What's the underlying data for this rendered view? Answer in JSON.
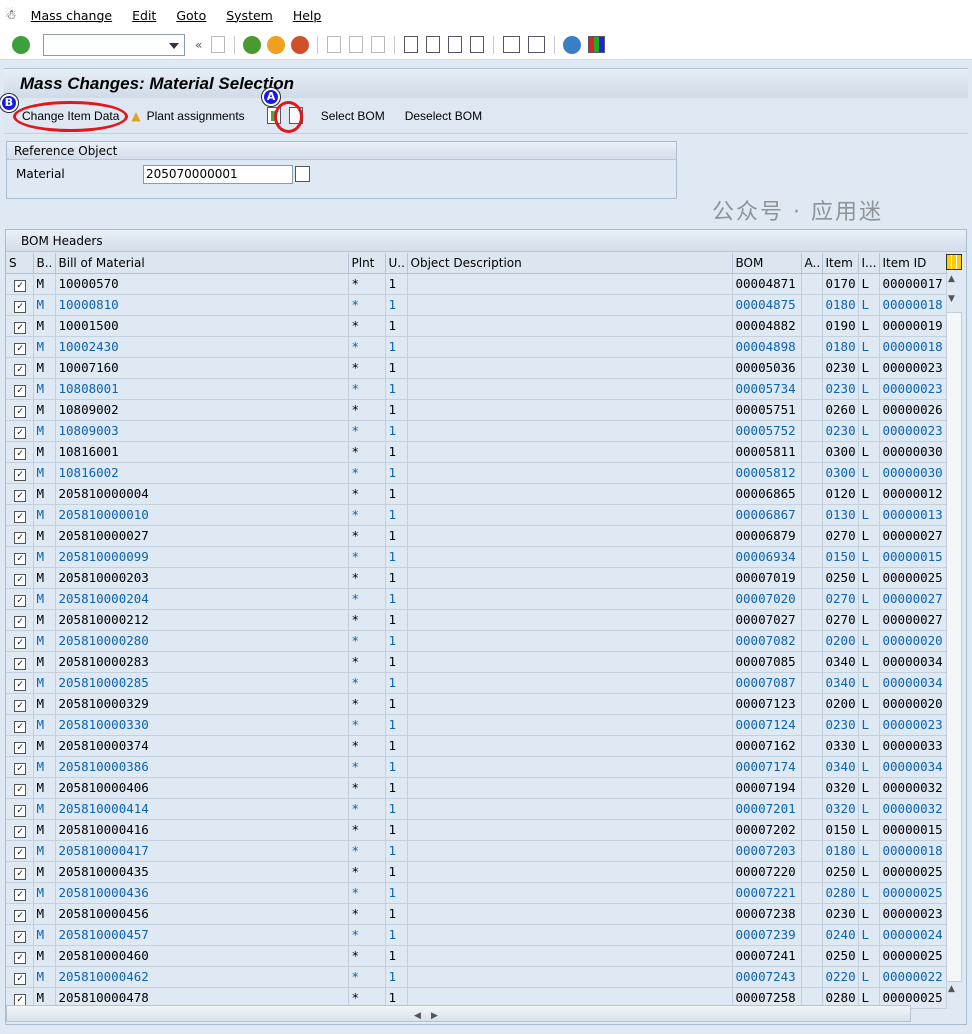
{
  "menu": [
    "Mass change",
    "Edit",
    "Goto",
    "System",
    "Help"
  ],
  "title": "Mass Changes: Material Selection",
  "appbar": {
    "change_item": "Change Item Data",
    "plant": "Plant assignments",
    "select": "Select BOM",
    "deselect": "Deselect BOM",
    "badge_a": "A",
    "badge_b": "B"
  },
  "reference": {
    "title": "Reference Object",
    "material_label": "Material",
    "material_value": "205070000001"
  },
  "grid": {
    "title": "BOM Headers",
    "columns": [
      "S",
      "B..",
      "Bill of Material",
      "Plnt",
      "U..",
      "Object Description",
      "BOM",
      "A..",
      "Item",
      "I...",
      "Item ID"
    ],
    "rows": [
      [
        "M",
        "10000570",
        "*",
        "1",
        "",
        "00004871",
        "",
        "0170",
        "L",
        "00000017"
      ],
      [
        "M",
        "10000810",
        "*",
        "1",
        "",
        "00004875",
        "",
        "0180",
        "L",
        "00000018"
      ],
      [
        "M",
        "10001500",
        "*",
        "1",
        "",
        "00004882",
        "",
        "0190",
        "L",
        "00000019"
      ],
      [
        "M",
        "10002430",
        "*",
        "1",
        "",
        "00004898",
        "",
        "0180",
        "L",
        "00000018"
      ],
      [
        "M",
        "10007160",
        "*",
        "1",
        "",
        "00005036",
        "",
        "0230",
        "L",
        "00000023"
      ],
      [
        "M",
        "10808001",
        "*",
        "1",
        "",
        "00005734",
        "",
        "0230",
        "L",
        "00000023"
      ],
      [
        "M",
        "10809002",
        "*",
        "1",
        "",
        "00005751",
        "",
        "0260",
        "L",
        "00000026"
      ],
      [
        "M",
        "10809003",
        "*",
        "1",
        "",
        "00005752",
        "",
        "0230",
        "L",
        "00000023"
      ],
      [
        "M",
        "10816001",
        "*",
        "1",
        "",
        "00005811",
        "",
        "0300",
        "L",
        "00000030"
      ],
      [
        "M",
        "10816002",
        "*",
        "1",
        "",
        "00005812",
        "",
        "0300",
        "L",
        "00000030"
      ],
      [
        "M",
        "205810000004",
        "*",
        "1",
        "",
        "00006865",
        "",
        "0120",
        "L",
        "00000012"
      ],
      [
        "M",
        "205810000010",
        "*",
        "1",
        "",
        "00006867",
        "",
        "0130",
        "L",
        "00000013"
      ],
      [
        "M",
        "205810000027",
        "*",
        "1",
        "",
        "00006879",
        "",
        "0270",
        "L",
        "00000027"
      ],
      [
        "M",
        "205810000099",
        "*",
        "1",
        "",
        "00006934",
        "",
        "0150",
        "L",
        "00000015"
      ],
      [
        "M",
        "205810000203",
        "*",
        "1",
        "",
        "00007019",
        "",
        "0250",
        "L",
        "00000025"
      ],
      [
        "M",
        "205810000204",
        "*",
        "1",
        "",
        "00007020",
        "",
        "0270",
        "L",
        "00000027"
      ],
      [
        "M",
        "205810000212",
        "*",
        "1",
        "",
        "00007027",
        "",
        "0270",
        "L",
        "00000027"
      ],
      [
        "M",
        "205810000280",
        "*",
        "1",
        "",
        "00007082",
        "",
        "0200",
        "L",
        "00000020"
      ],
      [
        "M",
        "205810000283",
        "*",
        "1",
        "",
        "00007085",
        "",
        "0340",
        "L",
        "00000034"
      ],
      [
        "M",
        "205810000285",
        "*",
        "1",
        "",
        "00007087",
        "",
        "0340",
        "L",
        "00000034"
      ],
      [
        "M",
        "205810000329",
        "*",
        "1",
        "",
        "00007123",
        "",
        "0200",
        "L",
        "00000020"
      ],
      [
        "M",
        "205810000330",
        "*",
        "1",
        "",
        "00007124",
        "",
        "0230",
        "L",
        "00000023"
      ],
      [
        "M",
        "205810000374",
        "*",
        "1",
        "",
        "00007162",
        "",
        "0330",
        "L",
        "00000033"
      ],
      [
        "M",
        "205810000386",
        "*",
        "1",
        "",
        "00007174",
        "",
        "0340",
        "L",
        "00000034"
      ],
      [
        "M",
        "205810000406",
        "*",
        "1",
        "",
        "00007194",
        "",
        "0320",
        "L",
        "00000032"
      ],
      [
        "M",
        "205810000414",
        "*",
        "1",
        "",
        "00007201",
        "",
        "0320",
        "L",
        "00000032"
      ],
      [
        "M",
        "205810000416",
        "*",
        "1",
        "",
        "00007202",
        "",
        "0150",
        "L",
        "00000015"
      ],
      [
        "M",
        "205810000417",
        "*",
        "1",
        "",
        "00007203",
        "",
        "0180",
        "L",
        "00000018"
      ],
      [
        "M",
        "205810000435",
        "*",
        "1",
        "",
        "00007220",
        "",
        "0250",
        "L",
        "00000025"
      ],
      [
        "M",
        "205810000436",
        "*",
        "1",
        "",
        "00007221",
        "",
        "0280",
        "L",
        "00000025"
      ],
      [
        "M",
        "205810000456",
        "*",
        "1",
        "",
        "00007238",
        "",
        "0230",
        "L",
        "00000023"
      ],
      [
        "M",
        "205810000457",
        "*",
        "1",
        "",
        "00007239",
        "",
        "0240",
        "L",
        "00000024"
      ],
      [
        "M",
        "205810000460",
        "*",
        "1",
        "",
        "00007241",
        "",
        "0250",
        "L",
        "00000025"
      ],
      [
        "M",
        "205810000462",
        "*",
        "1",
        "",
        "00007243",
        "",
        "0220",
        "L",
        "00000022"
      ],
      [
        "M",
        "205810000478",
        "*",
        "1",
        "",
        "00007258",
        "",
        "0280",
        "L",
        "00000025"
      ]
    ]
  },
  "watermark": "公众号 · 应用迷",
  "colors": {
    "link_blue": "#0b62b0",
    "highlight_red": "#e0181c",
    "badge_blue": "#1a1ae6"
  }
}
